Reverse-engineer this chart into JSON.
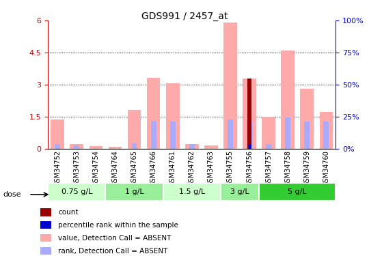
{
  "title": "GDS991 / 2457_at",
  "samples": [
    "GSM34752",
    "GSM34753",
    "GSM34754",
    "GSM34764",
    "GSM34765",
    "GSM34766",
    "GSM34761",
    "GSM34762",
    "GSM34763",
    "GSM34755",
    "GSM34756",
    "GSM34757",
    "GSM34758",
    "GSM34759",
    "GSM34760"
  ],
  "value_absent": [
    1.35,
    0.22,
    0.1,
    0.07,
    1.8,
    3.3,
    3.05,
    0.2,
    0.15,
    5.9,
    3.28,
    1.5,
    4.6,
    2.8,
    1.7
  ],
  "rank_absent": [
    0.22,
    0.13,
    0.0,
    0.0,
    0.25,
    1.3,
    1.28,
    0.2,
    0.0,
    1.35,
    1.28,
    0.22,
    1.45,
    1.28,
    1.28
  ],
  "count_value": [
    0.0,
    0.0,
    0.0,
    0.0,
    0.0,
    0.0,
    0.0,
    0.0,
    0.0,
    0.0,
    3.28,
    0.0,
    0.0,
    0.0,
    0.0
  ],
  "percentile_rank": [
    0.0,
    0.0,
    0.0,
    0.0,
    0.0,
    0.0,
    0.0,
    0.0,
    0.0,
    0.0,
    0.22,
    0.0,
    0.0,
    0.0,
    0.0
  ],
  "dose_groups": [
    {
      "label": "0.75 g/L",
      "start": 0,
      "end": 3,
      "color": "#ccffcc"
    },
    {
      "label": "1 g/L",
      "start": 3,
      "end": 6,
      "color": "#99ee99"
    },
    {
      "label": "1.5 g/L",
      "start": 6,
      "end": 9,
      "color": "#ccffcc"
    },
    {
      "label": "3 g/L",
      "start": 9,
      "end": 11,
      "color": "#99ee99"
    },
    {
      "label": "5 g/L",
      "start": 11,
      "end": 15,
      "color": "#33cc33"
    }
  ],
  "ylim_left": [
    0,
    6
  ],
  "ylim_right": [
    0,
    100
  ],
  "yticks_left": [
    0,
    1.5,
    3.0,
    4.5,
    6.0
  ],
  "ytick_labels_left": [
    "0",
    "1.5",
    "3",
    "4.5",
    "6"
  ],
  "yticks_right": [
    0,
    25,
    50,
    75,
    100
  ],
  "ytick_labels_right": [
    "0%",
    "25%",
    "50%",
    "75%",
    "100%"
  ],
  "bar_width": 0.35,
  "color_value_absent": "#ffaaaa",
  "color_rank_absent": "#aaaaff",
  "color_count": "#990000",
  "color_percentile": "#0000cc",
  "bg_color_plot": "#ffffff",
  "grid_color": "#000000",
  "dose_label_color": "#000000",
  "left_axis_color": "#cc0000",
  "right_axis_color": "#0000cc",
  "legend_items": [
    {
      "color": "#990000",
      "label": "count"
    },
    {
      "color": "#0000cc",
      "label": "percentile rank within the sample"
    },
    {
      "color": "#ffaaaa",
      "label": "value, Detection Call = ABSENT"
    },
    {
      "color": "#aaaaff",
      "label": "rank, Detection Call = ABSENT"
    }
  ]
}
